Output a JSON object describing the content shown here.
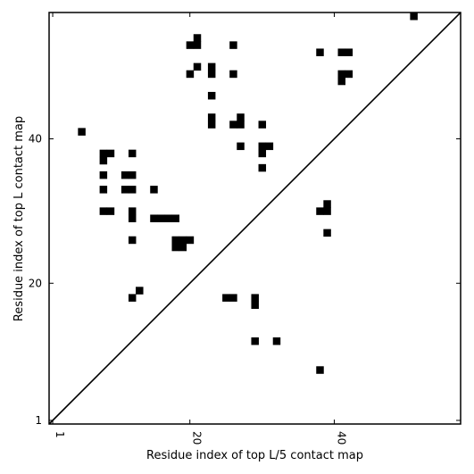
{
  "chart_data": {
    "type": "scatter",
    "marker": "square",
    "xlabel": "Residue index of top L/5 contact map",
    "ylabel": "Residue index of top L contact map",
    "xlim": [
      0.5,
      57.5
    ],
    "ylim": [
      0.5,
      57.5
    ],
    "x_ticks": [
      1,
      20,
      40
    ],
    "y_ticks": [
      1,
      20,
      40
    ],
    "grid": false,
    "legend": "none",
    "diagonal_line": {
      "from": [
        0.5,
        0.5
      ],
      "to": [
        57.5,
        57.5
      ],
      "color": "#000000"
    },
    "marker_color": "#000000",
    "points": [
      [
        51,
        57
      ],
      [
        21,
        54
      ],
      [
        20,
        53
      ],
      [
        21,
        53
      ],
      [
        26,
        53
      ],
      [
        38,
        52
      ],
      [
        41,
        52
      ],
      [
        42,
        52
      ],
      [
        21,
        50
      ],
      [
        23,
        50
      ],
      [
        20,
        49
      ],
      [
        23,
        49
      ],
      [
        26,
        49
      ],
      [
        41,
        49
      ],
      [
        42,
        49
      ],
      [
        41,
        48
      ],
      [
        23,
        46
      ],
      [
        5,
        41
      ],
      [
        23,
        43
      ],
      [
        23,
        42
      ],
      [
        26,
        42
      ],
      [
        27,
        42
      ],
      [
        27,
        43
      ],
      [
        30,
        42
      ],
      [
        8,
        38
      ],
      [
        9,
        38
      ],
      [
        12,
        38
      ],
      [
        8,
        37
      ],
      [
        27,
        39
      ],
      [
        30,
        39
      ],
      [
        31,
        39
      ],
      [
        30,
        38
      ],
      [
        30,
        36
      ],
      [
        8,
        35
      ],
      [
        11,
        35
      ],
      [
        12,
        35
      ],
      [
        8,
        33
      ],
      [
        11,
        33
      ],
      [
        12,
        33
      ],
      [
        15,
        33
      ],
      [
        39,
        31
      ],
      [
        38,
        30
      ],
      [
        39,
        30
      ],
      [
        8,
        30
      ],
      [
        9,
        30
      ],
      [
        12,
        30
      ],
      [
        12,
        29
      ],
      [
        15,
        29
      ],
      [
        16,
        29
      ],
      [
        17,
        29
      ],
      [
        18,
        29
      ],
      [
        39,
        27
      ],
      [
        12,
        26
      ],
      [
        18,
        26
      ],
      [
        19,
        26
      ],
      [
        20,
        26
      ],
      [
        18,
        25
      ],
      [
        19,
        25
      ],
      [
        13,
        19
      ],
      [
        12,
        18
      ],
      [
        25,
        18
      ],
      [
        26,
        18
      ],
      [
        29,
        18
      ],
      [
        29,
        17
      ],
      [
        29,
        12
      ],
      [
        32,
        12
      ],
      [
        38,
        8
      ]
    ]
  }
}
